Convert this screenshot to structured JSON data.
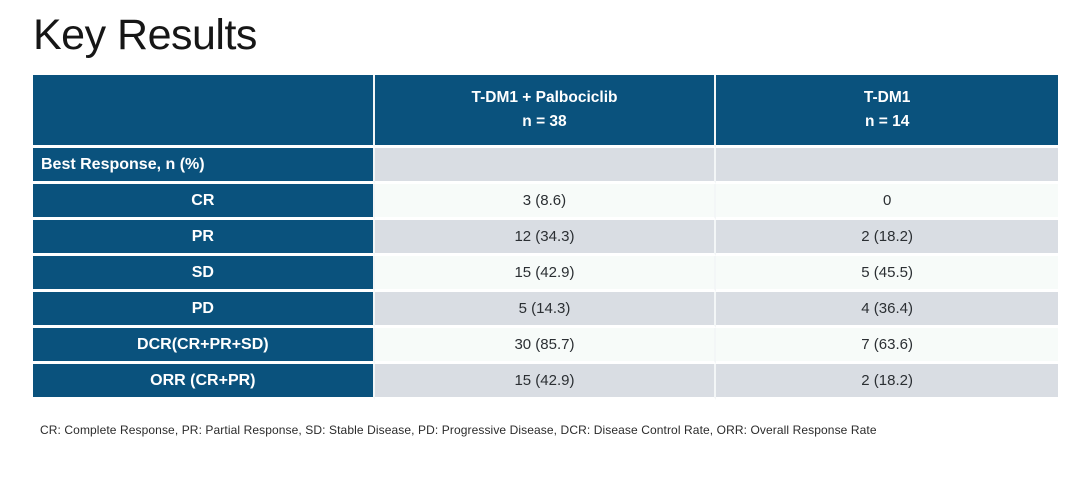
{
  "title": "Key Results",
  "colors": {
    "header_blue": "#0a527d",
    "row_gray": "#d9dde3",
    "row_white": "#f7fbf9",
    "title_black": "#161616"
  },
  "table": {
    "headers": {
      "col1_line1": "T-DM1 + Palbociclib",
      "col1_line2": "n = 38",
      "col2_line1": "T-DM1",
      "col2_line2": "n = 14"
    },
    "rows": [
      {
        "label": "Best Response, n (%)",
        "c1": "",
        "c2": ""
      },
      {
        "label": "CR",
        "c1": "3 (8.6)",
        "c2": "0"
      },
      {
        "label": "PR",
        "c1": "12 (34.3)",
        "c2": "2 (18.2)"
      },
      {
        "label": "SD",
        "c1": "15 (42.9)",
        "c2": "5 (45.5)"
      },
      {
        "label": "PD",
        "c1": "5 (14.3)",
        "c2": "4 (36.4)"
      },
      {
        "label": "DCR(CR+PR+SD)",
        "c1": "30 (85.7)",
        "c2": "7 (63.6)"
      },
      {
        "label": "ORR (CR+PR)",
        "c1": "15 (42.9)",
        "c2": "2 (18.2)"
      }
    ]
  },
  "footnote": "CR: Complete Response, PR: Partial Response, SD: Stable Disease, PD: Progressive Disease, DCR: Disease Control Rate, ORR: Overall Response Rate"
}
